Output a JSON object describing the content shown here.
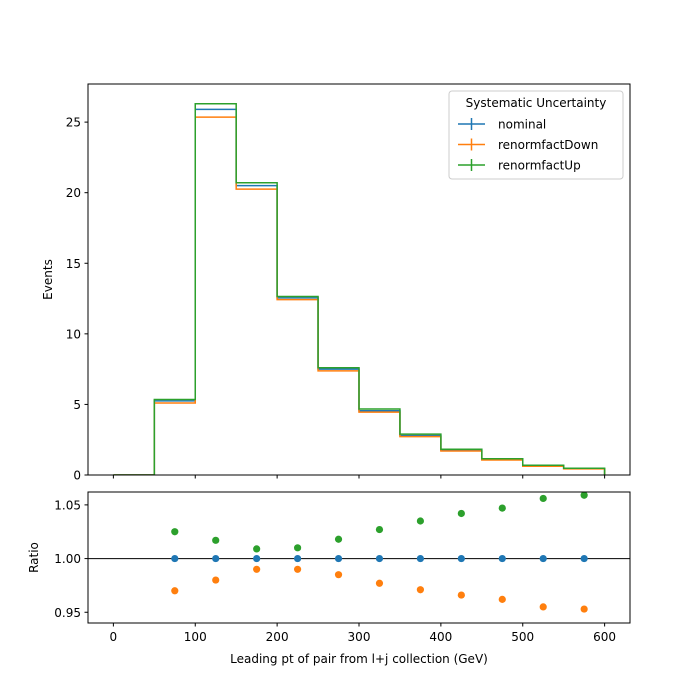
{
  "chart_data": [
    {
      "type": "step",
      "panel": "main",
      "ylabel": "Events",
      "xlim": [
        -31,
        631
      ],
      "ylim": [
        0,
        27.7
      ],
      "xticks": [
        0,
        100,
        200,
        300,
        400,
        500,
        600
      ],
      "yticks": [
        0,
        5,
        10,
        15,
        20,
        25
      ],
      "ytick_labels": [
        "0",
        "5",
        "10",
        "15",
        "20",
        "25"
      ],
      "bin_edges": [
        0,
        50,
        100,
        150,
        200,
        250,
        300,
        350,
        400,
        450,
        500,
        550,
        600
      ],
      "legend": {
        "title": "Systematic Uncertainty",
        "placement": "upper right"
      },
      "series": [
        {
          "name": "nominal",
          "color": "#1f77b4",
          "values": [
            0,
            5.25,
            25.9,
            20.5,
            12.55,
            7.5,
            4.55,
            2.8,
            1.75,
            1.1,
            0.65,
            0.45
          ]
        },
        {
          "name": "renormfactDown",
          "color": "#ff7f0e",
          "values": [
            0,
            5.1,
            25.35,
            20.25,
            12.42,
            7.38,
            4.45,
            2.72,
            1.7,
            1.06,
            0.62,
            0.43
          ]
        },
        {
          "name": "renormfactUp",
          "color": "#2ca02c",
          "values": [
            0,
            5.35,
            26.3,
            20.7,
            12.65,
            7.6,
            4.68,
            2.9,
            1.82,
            1.15,
            0.69,
            0.48
          ]
        }
      ]
    },
    {
      "type": "scatter",
      "panel": "ratio",
      "xlabel": "Leading pt of pair from l+j collection (GeV)",
      "ylabel": "Ratio",
      "xlim": [
        -31,
        631
      ],
      "ylim": [
        0.94,
        1.062
      ],
      "xticks": [
        0,
        100,
        200,
        300,
        400,
        500,
        600
      ],
      "xtick_labels": [
        "0",
        "100",
        "200",
        "300",
        "400",
        "500",
        "600"
      ],
      "yticks": [
        0.95,
        1.0,
        1.05
      ],
      "ytick_labels": [
        "0.95",
        "1.00",
        "1.05"
      ],
      "reference_line": 1.0,
      "x": [
        75,
        125,
        175,
        225,
        275,
        325,
        375,
        425,
        475,
        525,
        575
      ],
      "series": [
        {
          "name": "nominal",
          "color": "#1f77b4",
          "values": [
            1.0,
            1.0,
            1.0,
            1.0,
            1.0,
            1.0,
            1.0,
            1.0,
            1.0,
            1.0,
            1.0
          ]
        },
        {
          "name": "renormfactDown",
          "color": "#ff7f0e",
          "values": [
            0.97,
            0.98,
            0.99,
            0.99,
            0.985,
            0.977,
            0.971,
            0.966,
            0.962,
            0.955,
            0.953
          ]
        },
        {
          "name": "renormfactUp",
          "color": "#2ca02c",
          "values": [
            1.025,
            1.017,
            1.009,
            1.01,
            1.018,
            1.027,
            1.035,
            1.042,
            1.047,
            1.056,
            1.059
          ]
        }
      ]
    }
  ]
}
